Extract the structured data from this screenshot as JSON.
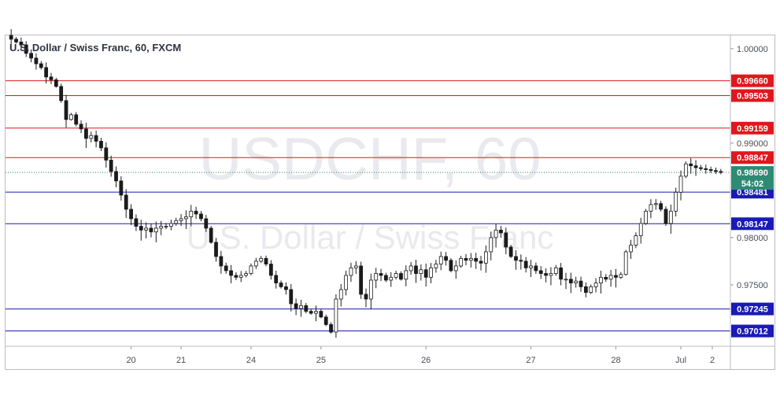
{
  "chart_data": {
    "type": "candlestick",
    "title": "U.S. Dollar / Swiss Franc, 60, FXCM",
    "watermark": {
      "symbol": "USDCHF, 60",
      "name": "U.S. Dollar / Swiss Franc"
    },
    "x_ticks": [
      "20",
      "21",
      "24",
      "25",
      "26",
      "27",
      "28",
      "Jul",
      "2"
    ],
    "y_ticks": [
      "1.00000",
      "0.99000",
      "0.98000",
      "0.97500"
    ],
    "y_tick_values": [
      1.0,
      0.99,
      0.98,
      0.975
    ],
    "ylim": [
      0.9685,
      1.0014
    ],
    "current_price": {
      "label": "0.98690",
      "value": 0.9869,
      "timer": "54:02",
      "color": "#2e8b73"
    },
    "resistance_levels": [
      {
        "label": "0.99660",
        "value": 0.9966
      },
      {
        "label": "0.99503",
        "value": 0.99503
      },
      {
        "label": "0.99159",
        "value": 0.99159
      },
      {
        "label": "0.98847",
        "value": 0.98847
      }
    ],
    "support_levels": [
      {
        "label": "0.98481",
        "value": 0.98481
      },
      {
        "label": "0.98147",
        "value": 0.98147
      },
      {
        "label": "0.97245",
        "value": 0.97245
      },
      {
        "label": "0.97012",
        "value": 0.97012
      }
    ],
    "closes": [
      1.001,
      1.0007,
      1.0004,
      0.9995,
      0.999,
      0.9984,
      0.998,
      0.997,
      0.9967,
      0.996,
      0.9945,
      0.9925,
      0.993,
      0.992,
      0.9915,
      0.9905,
      0.9908,
      0.9902,
      0.9895,
      0.9882,
      0.987,
      0.986,
      0.9845,
      0.983,
      0.982,
      0.9812,
      0.9808,
      0.981,
      0.9806,
      0.981,
      0.9812,
      0.9812,
      0.9815,
      0.9818,
      0.982,
      0.9822,
      0.9828,
      0.9825,
      0.982,
      0.981,
      0.9795,
      0.978,
      0.977,
      0.9765,
      0.976,
      0.9758,
      0.976,
      0.9762,
      0.977,
      0.9775,
      0.9778,
      0.9772,
      0.976,
      0.9752,
      0.9748,
      0.9745,
      0.973,
      0.9725,
      0.9728,
      0.9722,
      0.972,
      0.9722,
      0.9716,
      0.9708,
      0.97,
      0.9735,
      0.9745,
      0.976,
      0.9768,
      0.977,
      0.974,
      0.9735,
      0.9755,
      0.9762,
      0.976,
      0.9755,
      0.9758,
      0.9762,
      0.9756,
      0.9765,
      0.977,
      0.9762,
      0.9766,
      0.9758,
      0.9768,
      0.9772,
      0.978,
      0.9776,
      0.9765,
      0.977,
      0.9778,
      0.9776,
      0.9778,
      0.9775,
      0.9773,
      0.9785,
      0.98,
      0.9808,
      0.9805,
      0.979,
      0.978,
      0.9776,
      0.9775,
      0.9768,
      0.977,
      0.9765,
      0.9762,
      0.976,
      0.9762,
      0.9768,
      0.9756,
      0.9756,
      0.9752,
      0.9754,
      0.9748,
      0.9742,
      0.9748,
      0.9752,
      0.9758,
      0.9756,
      0.976,
      0.9758,
      0.9761,
      0.9785,
      0.9792,
      0.9802,
      0.9815,
      0.9828,
      0.9835,
      0.9836,
      0.983,
      0.9815,
      0.9828,
      0.9848,
      0.9865,
      0.9878,
      0.9876,
      0.9874,
      0.9873,
      0.9872,
      0.9871,
      0.987,
      0.9869
    ]
  }
}
